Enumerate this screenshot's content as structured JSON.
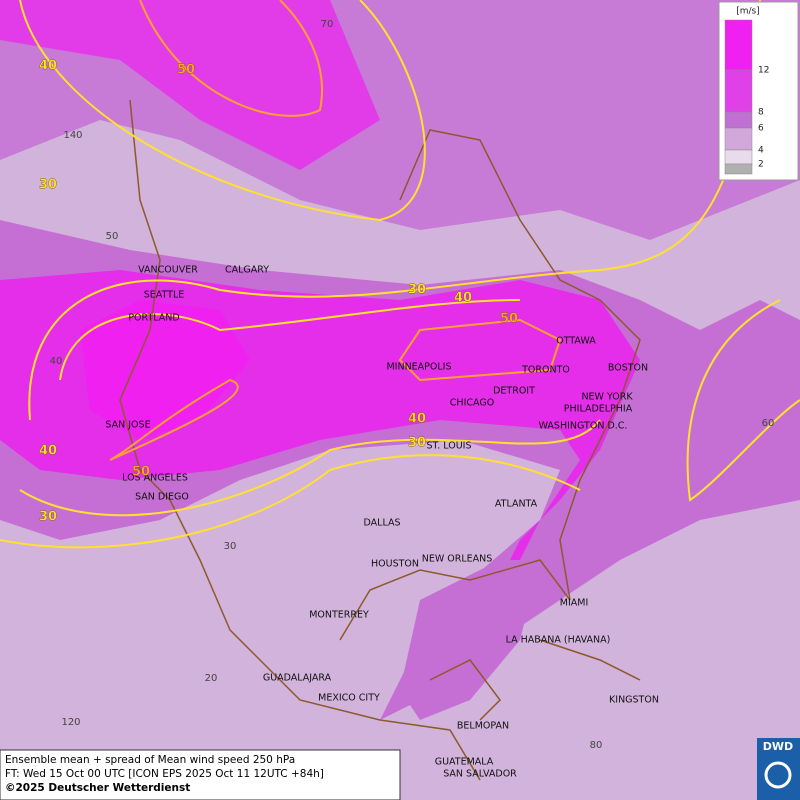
{
  "map": {
    "legend": {
      "unit": "[m/s]",
      "labels": [
        "12",
        "8",
        "6",
        "4",
        "2"
      ]
    },
    "cities": [
      "VANCOUVER",
      "CALGARY",
      "SEATTLE",
      "PORTLAND",
      "MINNEAPOLIS",
      "TORONTO",
      "OTTAWA",
      "BOSTON",
      "DETROIT",
      "CHICAGO",
      "NEW YORK",
      "PHILADELPHIA",
      "WASHINGTON D.C.",
      "SAN JOSE",
      "ST. LOUIS",
      "LOS ANGELES",
      "SAN DIEGO",
      "ATLANTA",
      "DALLAS",
      "HOUSTON",
      "NEW ORLEANS",
      "MIAMI",
      "MONTERREY",
      "LA HABANA (HAVANA)",
      "GUADALAJARA",
      "MEXICO CITY",
      "KINGSTON",
      "BELMOPAN",
      "GUATEMALA",
      "SAN SALVADOR"
    ],
    "contour_labels": [
      40,
      50,
      30,
      30,
      40,
      50,
      40,
      50,
      30,
      40,
      30
    ],
    "grid_labels": [
      70,
      140,
      50,
      40,
      30,
      20,
      120,
      80,
      60
    ],
    "footer": [
      "Ensemble mean + spread of Mean wind speed 250 hPa",
      "FT: Wed 15 Oct 00 UTC [ICON EPS 2025 Oct 11 12UTC +84h]",
      "©2025 Deutscher Wetterdienst"
    ],
    "logo": "DWD"
  }
}
